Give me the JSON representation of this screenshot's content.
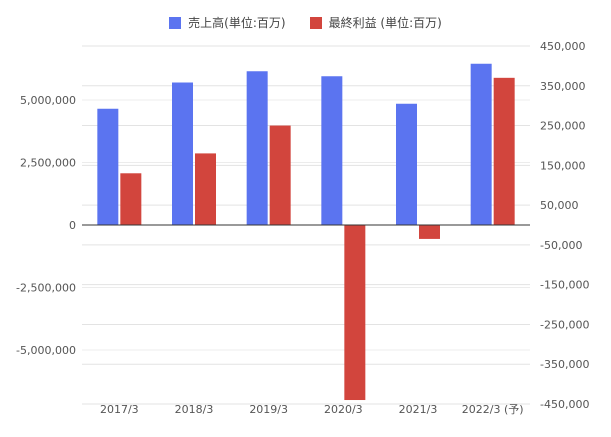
{
  "chart_data": {
    "type": "bar",
    "categories": [
      "2017/3",
      "2018/3",
      "2019/3",
      "2020/3",
      "2021/3",
      "2022/3 (予)"
    ],
    "series": [
      {
        "name": "売上高(単位:百万)",
        "axis": "left",
        "color": "#5b74f0",
        "values": [
          4650000,
          5700000,
          6150000,
          5950000,
          4850000,
          6450000
        ]
      },
      {
        "name": "最終利益 (単位:百万)",
        "axis": "right",
        "color": "#d2453d",
        "values": [
          130000,
          180000,
          250000,
          -440000,
          -35000,
          370000
        ]
      }
    ],
    "y_left": {
      "ylim": [
        -6500000,
        6500000
      ],
      "ticks": [
        5000000,
        2500000,
        0,
        -2500000,
        -5000000
      ],
      "tick_labels": [
        "5,000,000",
        "2,500,000",
        "0",
        "-2,500,000",
        "-5,000,000"
      ]
    },
    "y_right": {
      "ylim": [
        -450000,
        450000
      ],
      "ticks": [
        450000,
        350000,
        250000,
        150000,
        50000,
        -50000,
        -150000,
        -250000,
        -350000,
        -450000
      ],
      "tick_labels": [
        "450,000",
        "350,000",
        "250,000",
        "150,000",
        "50,000",
        "-50,000",
        "-150,000",
        "-250,000",
        "-350,000",
        "-450,000"
      ]
    },
    "grid": true,
    "legend_position": "top-center"
  }
}
